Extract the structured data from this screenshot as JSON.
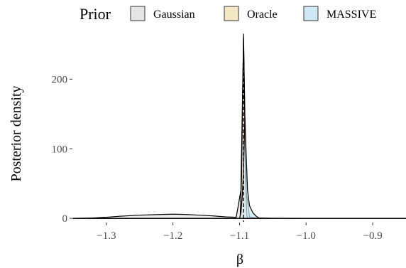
{
  "chart_data": {
    "type": "area",
    "title": "",
    "xlabel": "β",
    "ylabel": "Posterior density",
    "xlim": [
      -1.35,
      -0.85
    ],
    "ylim": [
      -5,
      275
    ],
    "x_ticks": [
      -1.3,
      -1.2,
      -1.1,
      -1.0,
      -0.9
    ],
    "x_tick_labels": [
      "−1.3",
      "−1.2",
      "−1.1",
      "−1.0",
      "−0.9"
    ],
    "y_ticks": [
      0,
      100,
      200
    ],
    "y_tick_labels": [
      "0",
      "100",
      "200"
    ],
    "grid": false,
    "legend": {
      "title": "Prior",
      "placement": "top",
      "entries": [
        "Gaussian",
        "Oracle",
        "MASSIVE"
      ]
    },
    "reference_line": {
      "x": -1.094,
      "style": "dashed",
      "color": "#000000"
    },
    "series": [
      {
        "name": "Gaussian",
        "fill": "#e6e6e6",
        "x": [
          -1.35,
          -1.32,
          -1.3,
          -1.28,
          -1.25,
          -1.22,
          -1.2,
          -1.18,
          -1.16,
          -1.14,
          -1.12,
          -1.105,
          -1.098,
          -1.094,
          -1.09,
          -1.085,
          -1.075,
          -1.06,
          -1.0,
          -0.9,
          -0.85
        ],
        "y": [
          0,
          0.5,
          1.5,
          3,
          4.5,
          5.5,
          6,
          5.5,
          4.5,
          3.5,
          2,
          1.5,
          40,
          260,
          40,
          2,
          0.5,
          0.2,
          0,
          0,
          0
        ]
      },
      {
        "name": "Oracle",
        "fill": "#f5e6c4",
        "x": [
          -1.35,
          -1.1,
          -1.099,
          -1.097,
          -1.095,
          -1.094,
          -1.093,
          -1.091,
          -1.089,
          -1.087,
          -0.85
        ],
        "y": [
          0,
          0,
          3,
          60,
          200,
          265,
          200,
          60,
          3,
          0,
          0
        ]
      },
      {
        "name": "MASSIVE",
        "fill": "#cfe8f5",
        "x": [
          -1.35,
          -1.1,
          -1.098,
          -1.096,
          -1.094,
          -1.092,
          -1.09,
          -1.088,
          -1.085,
          -1.08,
          -1.075,
          -1.07,
          -0.85
        ],
        "y": [
          0,
          0,
          8,
          30,
          70,
          145,
          90,
          40,
          18,
          8,
          3,
          0,
          0
        ]
      }
    ]
  }
}
